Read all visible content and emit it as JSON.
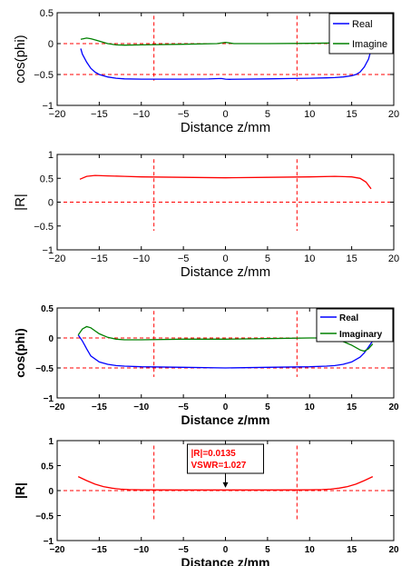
{
  "colors": {
    "real": "#0000ff",
    "imag": "#008000",
    "r": "#ff0000",
    "ref": "#ff0000",
    "axis": "#000000",
    "annotation_text": "#ff0000"
  },
  "chart_data": [
    {
      "type": "line",
      "xlabel": "Distance z/mm",
      "ylabel": "cos(phi)",
      "xlim": [
        -20,
        20
      ],
      "ylim": [
        -1,
        0.5
      ],
      "xticks": [
        -20,
        -15,
        -10,
        -5,
        0,
        5,
        10,
        15,
        20
      ],
      "yticks": [
        -1,
        -0.5,
        0,
        0.5
      ],
      "xtick_labels": [
        "−20",
        "−15",
        "−10",
        "−5",
        "0",
        "5",
        "10",
        "15",
        "20"
      ],
      "ytick_labels": [
        "−1",
        "−0.5",
        "0",
        "0.5"
      ],
      "legend_position": "top-right",
      "hlines": [
        0,
        -0.5
      ],
      "vlines": [
        -8.5,
        8.5
      ],
      "vline_range": [
        -0.6,
        0.45
      ],
      "series": [
        {
          "name": "Real",
          "color_key": "real",
          "x": [
            -17.2,
            -17,
            -16.5,
            -16,
            -15.5,
            -15,
            -14,
            -13,
            -12,
            -10,
            -8,
            -5,
            -2,
            -0.5,
            0,
            0.5,
            2,
            5,
            8,
            10,
            12,
            13,
            14,
            15,
            15.5,
            16,
            16.5,
            17,
            17.3
          ],
          "y": [
            -0.08,
            -0.17,
            -0.3,
            -0.4,
            -0.46,
            -0.5,
            -0.54,
            -0.56,
            -0.57,
            -0.575,
            -0.575,
            -0.575,
            -0.572,
            -0.565,
            -0.575,
            -0.578,
            -0.575,
            -0.57,
            -0.565,
            -0.56,
            -0.555,
            -0.55,
            -0.54,
            -0.52,
            -0.5,
            -0.46,
            -0.38,
            -0.25,
            -0.1
          ]
        },
        {
          "name": "Imagine",
          "color_key": "imag",
          "x": [
            -17.2,
            -16.5,
            -16,
            -15.5,
            -15,
            -14,
            -13,
            -12,
            -10,
            -5,
            -1,
            0,
            1,
            5,
            10,
            13,
            15,
            16,
            17
          ],
          "y": [
            0.07,
            0.09,
            0.08,
            0.06,
            0.04,
            0.0,
            -0.02,
            -0.025,
            -0.02,
            -0.01,
            0.0,
            0.02,
            0.0,
            0.0,
            0.005,
            0.01,
            0.01,
            0.01,
            0.02
          ]
        }
      ]
    },
    {
      "type": "line",
      "xlabel": "Distance z/mm",
      "ylabel": "|R|",
      "xlim": [
        -20,
        20
      ],
      "ylim": [
        -1,
        1
      ],
      "xticks": [
        -20,
        -15,
        -10,
        -5,
        0,
        5,
        10,
        15,
        20
      ],
      "yticks": [
        -1,
        -0.5,
        0,
        0.5,
        1
      ],
      "xtick_labels": [
        "−20",
        "−15",
        "−10",
        "−5",
        "0",
        "5",
        "10",
        "15",
        "20"
      ],
      "ytick_labels": [
        "−1",
        "−0.5",
        "0",
        "0.5",
        "1"
      ],
      "hlines": [
        0
      ],
      "vlines": [
        -8.5,
        8.5
      ],
      "vline_range": [
        -0.6,
        0.9
      ],
      "series": [
        {
          "color_key": "r",
          "x": [
            -17.3,
            -16.5,
            -15.5,
            -14,
            -12,
            -10,
            -5,
            0,
            5,
            10,
            13,
            15,
            16,
            16.7,
            17.3
          ],
          "y": [
            0.48,
            0.54,
            0.56,
            0.55,
            0.54,
            0.53,
            0.52,
            0.51,
            0.52,
            0.53,
            0.54,
            0.53,
            0.5,
            0.42,
            0.28
          ]
        }
      ]
    },
    {
      "type": "line",
      "xlabel": "Distance z/mm",
      "ylabel": "cos(phi)",
      "xlim": [
        -20,
        20
      ],
      "ylim": [
        -1,
        0.5
      ],
      "xticks": [
        -20,
        -15,
        -10,
        -5,
        0,
        5,
        10,
        15,
        20
      ],
      "yticks": [
        -1,
        -0.5,
        0,
        0.5
      ],
      "xtick_labels": [
        "−20",
        "−15",
        "−10",
        "−5",
        "0",
        "5",
        "10",
        "15",
        "20"
      ],
      "ytick_labels": [
        "−1",
        "−0.5",
        "0",
        "0.5"
      ],
      "legend_position": "top-right",
      "hlines": [
        0,
        -0.5
      ],
      "vlines": [
        -8.5,
        8.5
      ],
      "vline_range": [
        -0.65,
        0.45
      ],
      "series": [
        {
          "name": "Real",
          "color_key": "real",
          "x": [
            -17.5,
            -17,
            -16.5,
            -16,
            -15,
            -14,
            -13,
            -12,
            -10,
            -5,
            0,
            5,
            10,
            12,
            13,
            14,
            15,
            16,
            16.5,
            17,
            17.5
          ],
          "y": [
            0.05,
            -0.05,
            -0.18,
            -0.3,
            -0.4,
            -0.44,
            -0.46,
            -0.47,
            -0.48,
            -0.49,
            -0.5,
            -0.49,
            -0.48,
            -0.47,
            -0.46,
            -0.44,
            -0.4,
            -0.32,
            -0.25,
            -0.15,
            -0.05
          ]
        },
        {
          "name": "Imaginary",
          "color_key": "imag",
          "x": [
            -17.5,
            -17,
            -16.5,
            -16,
            -15.5,
            -15,
            -14,
            -13,
            -12,
            -10,
            -5,
            0,
            5,
            10,
            12,
            13,
            14,
            15,
            16,
            16.5,
            17,
            17.5
          ],
          "y": [
            0.05,
            0.15,
            0.19,
            0.17,
            0.12,
            0.07,
            0.01,
            -0.02,
            -0.03,
            -0.03,
            -0.02,
            -0.02,
            -0.01,
            0.0,
            0.0,
            -0.02,
            -0.06,
            -0.12,
            -0.2,
            -0.22,
            -0.18,
            -0.1
          ]
        }
      ]
    },
    {
      "type": "line",
      "xlabel": "Distance z/mm",
      "ylabel": "|R|",
      "xlim": [
        -20,
        20
      ],
      "ylim": [
        -1,
        1
      ],
      "xticks": [
        -20,
        -15,
        -10,
        -5,
        0,
        5,
        10,
        15,
        20
      ],
      "yticks": [
        -1,
        -0.5,
        0,
        0.5,
        1
      ],
      "xtick_labels": [
        "−20",
        "−15",
        "−10",
        "−5",
        "0",
        "5",
        "10",
        "15",
        "20"
      ],
      "ytick_labels": [
        "−1",
        "−0.5",
        "0",
        "0.5",
        "1"
      ],
      "hlines": [
        0
      ],
      "vlines": [
        -8.5,
        8.5
      ],
      "vline_range": [
        -0.6,
        0.9
      ],
      "annotation": {
        "lines": [
          "|R|=0.0135",
          "VSWR=1.027"
        ],
        "arrow_x": 0,
        "arrow_y": 0.02
      },
      "series": [
        {
          "color_key": "r",
          "x": [
            -17.5,
            -16.5,
            -15.5,
            -14.5,
            -13.5,
            -12.5,
            -11.5,
            -10,
            -5,
            0,
            5,
            10,
            11.5,
            12.5,
            13.5,
            14.5,
            15.5,
            16.5,
            17.5
          ],
          "y": [
            0.28,
            0.2,
            0.13,
            0.08,
            0.05,
            0.03,
            0.02,
            0.015,
            0.013,
            0.0135,
            0.013,
            0.015,
            0.02,
            0.03,
            0.05,
            0.08,
            0.13,
            0.2,
            0.28
          ]
        }
      ]
    }
  ]
}
